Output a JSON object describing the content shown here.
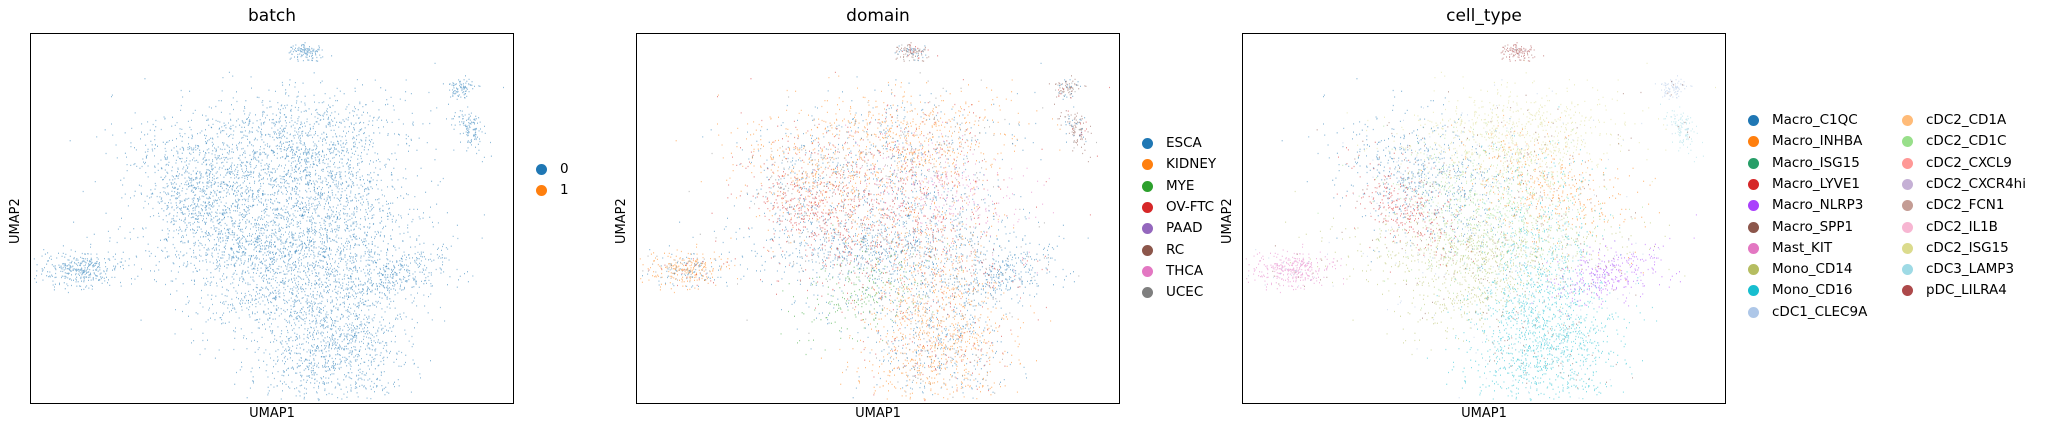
{
  "chart_data": [
    {
      "type": "scatter",
      "title": "batch",
      "xlabel": "UMAP1",
      "ylabel": "UMAP2",
      "grid": false,
      "legend_position": "right",
      "legend": [
        {
          "label": "0",
          "color": "#1f77b4"
        },
        {
          "label": "1",
          "color": "#ff7f0e"
        }
      ]
    },
    {
      "type": "scatter",
      "title": "domain",
      "xlabel": "UMAP1",
      "ylabel": "UMAP2",
      "grid": false,
      "legend_position": "right",
      "legend": [
        {
          "label": "ESCA",
          "color": "#1f77b4"
        },
        {
          "label": "KIDNEY",
          "color": "#ff7f0e"
        },
        {
          "label": "MYE",
          "color": "#2ca02c"
        },
        {
          "label": "OV-FTC",
          "color": "#d62728"
        },
        {
          "label": "PAAD",
          "color": "#9467bd"
        },
        {
          "label": "RC",
          "color": "#8c564b"
        },
        {
          "label": "THCA",
          "color": "#e377c2"
        },
        {
          "label": "UCEC",
          "color": "#7f7f7f"
        }
      ]
    },
    {
      "type": "scatter",
      "title": "cell_type",
      "xlabel": "UMAP1",
      "ylabel": "UMAP2",
      "grid": false,
      "legend_position": "right",
      "legend": [
        {
          "label": "Macro_C1QC",
          "color": "#1f77b4"
        },
        {
          "label": "Macro_INHBA",
          "color": "#ff7f0e"
        },
        {
          "label": "Macro_ISG15",
          "color": "#279e68"
        },
        {
          "label": "Macro_LYVE1",
          "color": "#d62728"
        },
        {
          "label": "Macro_NLRP3",
          "color": "#aa40fc"
        },
        {
          "label": "Macro_SPP1",
          "color": "#8c564b"
        },
        {
          "label": "Mast_KIT",
          "color": "#e377c2"
        },
        {
          "label": "Mono_CD14",
          "color": "#b5bd61"
        },
        {
          "label": "Mono_CD16",
          "color": "#17becf"
        },
        {
          "label": "cDC1_CLEC9A",
          "color": "#aec7e8"
        },
        {
          "label": "cDC2_CD1A",
          "color": "#ffbb78"
        },
        {
          "label": "cDC2_CD1C",
          "color": "#98df8a"
        },
        {
          "label": "cDC2_CXCL9",
          "color": "#ff9896"
        },
        {
          "label": "cDC2_CXCR4hi",
          "color": "#c5b0d5"
        },
        {
          "label": "cDC2_FCN1",
          "color": "#c49c94"
        },
        {
          "label": "cDC2_IL1B",
          "color": "#f7b6d2"
        },
        {
          "label": "cDC2_ISG15",
          "color": "#dbdb8d"
        },
        {
          "label": "cDC3_LAMP3",
          "color": "#9edae5"
        },
        {
          "label": "pDC_LILRA4",
          "color": "#ad494a"
        }
      ]
    }
  ]
}
